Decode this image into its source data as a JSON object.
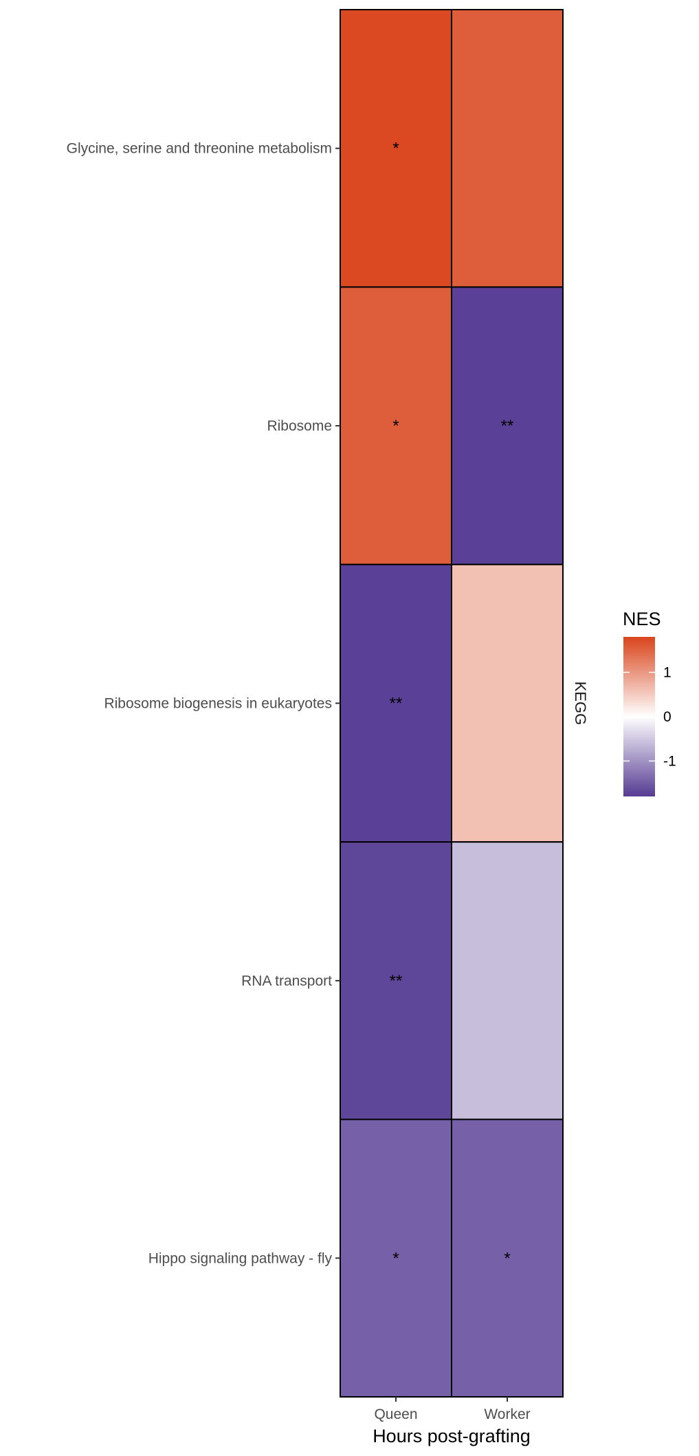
{
  "chart_data": {
    "type": "heatmap",
    "xlabel": "Hours post-grafting",
    "x_categories": [
      "Queen",
      "Worker"
    ],
    "y_categories": [
      "Glycine, serine and threonine metabolism",
      "Ribosome",
      "Ribosome biogenesis in eukaryotes",
      "RNA transport",
      "Hippo signaling pathway - fly"
    ],
    "facet_label": "KEGG",
    "values": [
      [
        1.75,
        1.55
      ],
      [
        1.55,
        -1.75
      ],
      [
        -1.75,
        0.6
      ],
      [
        -1.7,
        -0.6
      ],
      [
        -1.45,
        -1.45
      ]
    ],
    "significance": [
      [
        "*",
        ""
      ],
      [
        "*",
        "**"
      ],
      [
        "**",
        ""
      ],
      [
        "**",
        ""
      ],
      [
        "*",
        "*"
      ]
    ],
    "legend": {
      "title": "NES",
      "ticks": [
        1,
        0,
        -1
      ],
      "tick_labels": [
        "1",
        "0",
        "-1"
      ],
      "range": [
        -1.8,
        1.8
      ],
      "placement": "right"
    },
    "colors": {
      "high": "#d9441c",
      "mid": "#ffffff",
      "low": "#553b93"
    },
    "grid": false
  }
}
